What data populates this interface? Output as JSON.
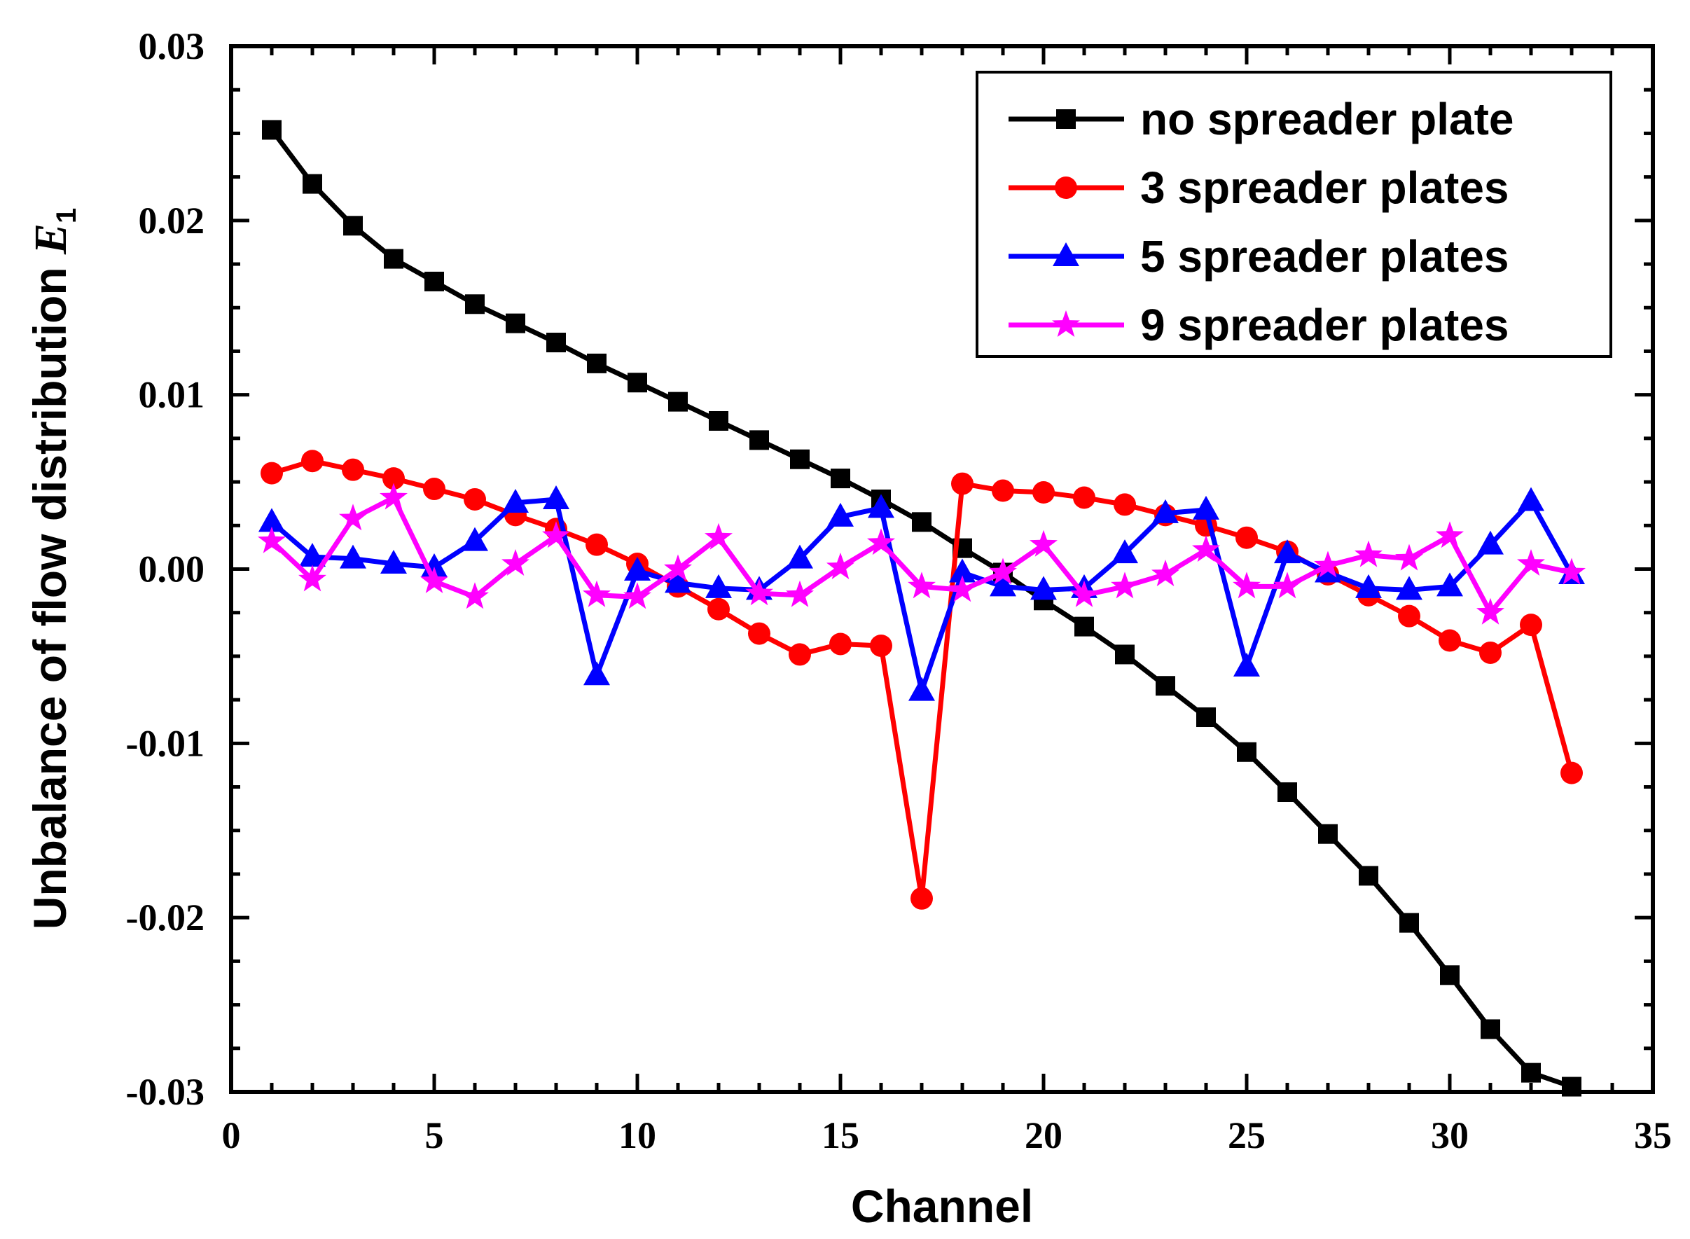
{
  "chart_data": {
    "type": "line",
    "title": "",
    "xlabel": "Channel",
    "ylabel": "Unbalance of flow distribution ",
    "ylabel_symbol": "E",
    "ylabel_subscript": "1",
    "xlim": [
      0,
      35
    ],
    "ylim": [
      -0.03,
      0.03
    ],
    "xticks": [
      0,
      5,
      10,
      15,
      20,
      25,
      30,
      35
    ],
    "yticks": [
      -0.03,
      -0.02,
      -0.01,
      0.0,
      0.01,
      0.02,
      0.03
    ],
    "xtick_labels": [
      "0",
      "5",
      "10",
      "15",
      "20",
      "25",
      "30",
      "35"
    ],
    "ytick_labels": [
      "-0.03",
      "-0.02",
      "-0.01",
      "0.00",
      "0.01",
      "0.02",
      "0.03"
    ],
    "legend_position": "top-right",
    "x": [
      1,
      2,
      3,
      4,
      5,
      6,
      7,
      8,
      9,
      10,
      11,
      12,
      13,
      14,
      15,
      16,
      17,
      18,
      19,
      20,
      21,
      22,
      23,
      24,
      25,
      26,
      27,
      28,
      29,
      30,
      31,
      32,
      33
    ],
    "series": [
      {
        "name": "no spreader plate",
        "color": "#000000",
        "marker": "square",
        "values": [
          0.0252,
          0.0221,
          0.0197,
          0.0178,
          0.0165,
          0.0152,
          0.0141,
          0.013,
          0.0118,
          0.0107,
          0.0096,
          0.0085,
          0.0074,
          0.0063,
          0.0052,
          0.004,
          0.0027,
          0.0012,
          -0.0002,
          -0.0018,
          -0.0033,
          -0.0049,
          -0.0067,
          -0.0085,
          -0.0105,
          -0.0128,
          -0.0152,
          -0.0176,
          -0.0203,
          -0.0233,
          -0.0264,
          -0.0289,
          -0.0297
        ]
      },
      {
        "name": "3 spreader plates",
        "color": "#ff0000",
        "marker": "circle",
        "values": [
          0.0055,
          0.0062,
          0.0057,
          0.0052,
          0.0046,
          0.004,
          0.0031,
          0.0023,
          0.0014,
          0.0003,
          -0.001,
          -0.0023,
          -0.0037,
          -0.0049,
          -0.0043,
          -0.0044,
          -0.0189,
          0.0049,
          0.0045,
          0.0044,
          0.0041,
          0.0037,
          0.0031,
          0.0025,
          0.0018,
          0.001,
          -0.0003,
          -0.0015,
          -0.0027,
          -0.0041,
          -0.0048,
          -0.0032,
          -0.0117
        ]
      },
      {
        "name": "5 spreader plates",
        "color": "#0000ff",
        "marker": "triangle",
        "values": [
          0.0027,
          0.0007,
          0.0006,
          0.0003,
          0.0001,
          0.0016,
          0.0038,
          0.004,
          -0.0061,
          -0.0001,
          -0.0008,
          -0.0011,
          -0.0012,
          0.0006,
          0.003,
          0.0035,
          -0.007,
          -0.0002,
          -0.001,
          -0.0012,
          -0.0011,
          0.0009,
          0.0032,
          0.0034,
          -0.0056,
          0.0009,
          -0.0002,
          -0.0011,
          -0.0012,
          -0.001,
          0.0014,
          0.0039,
          -0.0003
        ]
      },
      {
        "name": "9 spreader plates",
        "color": "#ff00ff",
        "marker": "star",
        "values": [
          0.0016,
          -0.0006,
          0.0029,
          0.0041,
          -0.0007,
          -0.0016,
          0.0003,
          0.0019,
          -0.0015,
          -0.0016,
          0.0,
          0.0018,
          -0.0014,
          -0.0015,
          0.0001,
          0.0015,
          -0.001,
          -0.0012,
          -0.0002,
          0.0014,
          -0.0015,
          -0.001,
          -0.0003,
          0.0011,
          -0.001,
          -0.001,
          0.0002,
          0.0008,
          0.0006,
          0.0019,
          -0.0025,
          0.0003,
          -0.0002
        ]
      }
    ]
  }
}
